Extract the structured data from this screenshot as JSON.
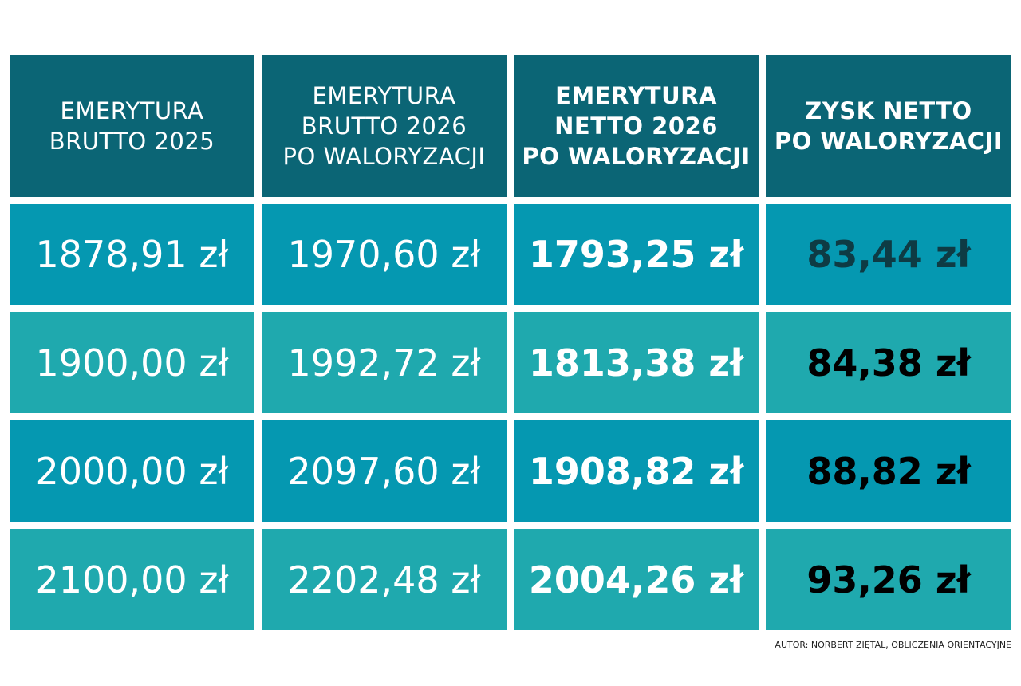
{
  "table": {
    "header": [
      [
        "EMERYTURA",
        "BRUTTO 2025"
      ],
      [
        "EMERYTURA",
        "BRUTTO 2026",
        "PO WALORYZACJI"
      ],
      [
        "EMERYTURA",
        "NETTO 2026",
        "PO WALORYZACJI"
      ],
      [
        "ZYSK NETTO",
        "PO WALORYZACJI"
      ]
    ],
    "rows": [
      [
        "1878,91 zł",
        "1970,60 zł",
        "1793,25 zł",
        "83,44 zł"
      ],
      [
        "1900,00 zł",
        "1992,72 zł",
        "1813,38 zł",
        "84,38 zł"
      ],
      [
        "2000,00 zł",
        "2097,60 zł",
        "1908,82 zł",
        "88,82 zł"
      ],
      [
        "2100,00 zł",
        "2202,48 zł",
        "2004,26 zł",
        "93,26 zł"
      ]
    ]
  },
  "footer": "AUTOR: NORBERT ZIĘTAL, OBLICZENIA ORIENTACYJNE"
}
